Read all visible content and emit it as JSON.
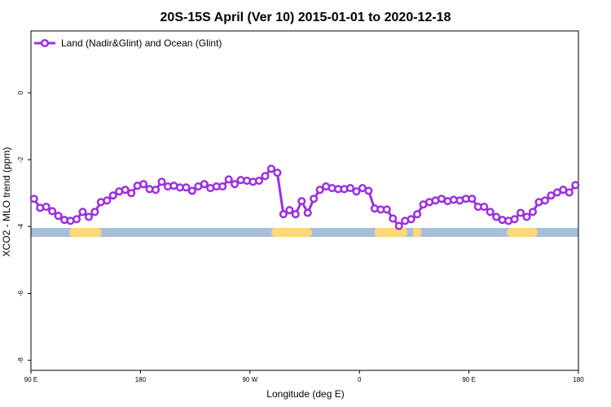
{
  "chart_data": {
    "type": "line",
    "title": "20S-15S April (Ver 10)   2015-01-01 to 2020-12-18",
    "x_label": "Longitude (deg E)",
    "y_label": "XCO2 - MLO trend (ppm)",
    "legend_position": "upper left",
    "xlim": [
      90,
      540
    ],
    "xticks": [
      {
        "value": 90,
        "label": "90 E"
      },
      180,
      {
        "value": 270,
        "label": "90 W"
      },
      {
        "value": 360,
        "label": "0"
      },
      {
        "value": 450,
        "label": "90 E"
      },
      {
        "value": 540,
        "label": "180"
      }
    ],
    "ylim": [
      -8.3,
      1.85
    ],
    "yticks": [
      0,
      -2,
      -4,
      -6,
      -8
    ],
    "x": [
      92.5,
      97.5,
      102.5,
      107.5,
      112.5,
      117.5,
      122.5,
      127.5,
      132.5,
      137.5,
      142.5,
      147.5,
      152.5,
      157.5,
      162.5,
      167.5,
      172.5,
      177.5,
      182.5,
      187.5,
      192.5,
      197.5,
      202.5,
      207.5,
      212.5,
      217.5,
      222.5,
      227.5,
      232.5,
      237.5,
      242.5,
      247.5,
      252.5,
      257.5,
      262.5,
      267.5,
      272.5,
      277.5,
      282.5,
      287.5,
      292.5,
      297.5,
      302.5,
      307.5,
      312.5,
      317.5,
      322.5,
      327.5,
      332.5,
      337.5,
      342.5,
      347.5,
      352.5,
      357.5,
      362.5,
      367.5,
      372.5,
      377.5,
      382.5,
      387.5,
      392.5,
      397.5,
      402.5,
      407.5,
      412.5,
      417.5,
      422.5,
      427.5,
      432.5,
      437.5,
      442.5,
      447.5,
      452.5,
      457.5,
      462.5,
      467.5,
      472.5,
      477.5,
      482.5,
      487.5,
      492.5,
      497.5,
      502.5,
      507.5,
      512.5,
      517.5,
      522.5,
      527.5,
      532.5,
      537.5
    ],
    "series": [
      {
        "name": "Land (Nadir&Glint) and Ocean (Glint)",
        "color": "#9b30e0",
        "values": [
          -3.17,
          -3.44,
          -3.41,
          -3.54,
          -3.68,
          -3.8,
          -3.83,
          -3.78,
          -3.56,
          -3.71,
          -3.56,
          -3.27,
          -3.22,
          -3.07,
          -2.95,
          -2.9,
          -3.0,
          -2.78,
          -2.73,
          -2.88,
          -2.9,
          -2.66,
          -2.8,
          -2.78,
          -2.83,
          -2.83,
          -2.93,
          -2.8,
          -2.73,
          -2.85,
          -2.8,
          -2.8,
          -2.59,
          -2.73,
          -2.61,
          -2.63,
          -2.66,
          -2.63,
          -2.49,
          -2.27,
          -2.39,
          -3.63,
          -3.51,
          -3.63,
          -3.24,
          -3.59,
          -3.17,
          -2.9,
          -2.8,
          -2.85,
          -2.88,
          -2.88,
          -2.85,
          -2.95,
          -2.85,
          -2.93,
          -3.46,
          -3.49,
          -3.49,
          -3.76,
          -3.98,
          -3.83,
          -3.78,
          -3.63,
          -3.34,
          -3.27,
          -3.22,
          -3.17,
          -3.24,
          -3.2,
          -3.22,
          -3.17,
          -3.17,
          -3.41,
          -3.41,
          -3.56,
          -3.71,
          -3.8,
          -3.83,
          -3.78,
          -3.59,
          -3.71,
          -3.56,
          -3.27,
          -3.22,
          -3.07,
          -2.98,
          -2.9,
          -2.98,
          -2.76
        ]
      }
    ]
  }
}
